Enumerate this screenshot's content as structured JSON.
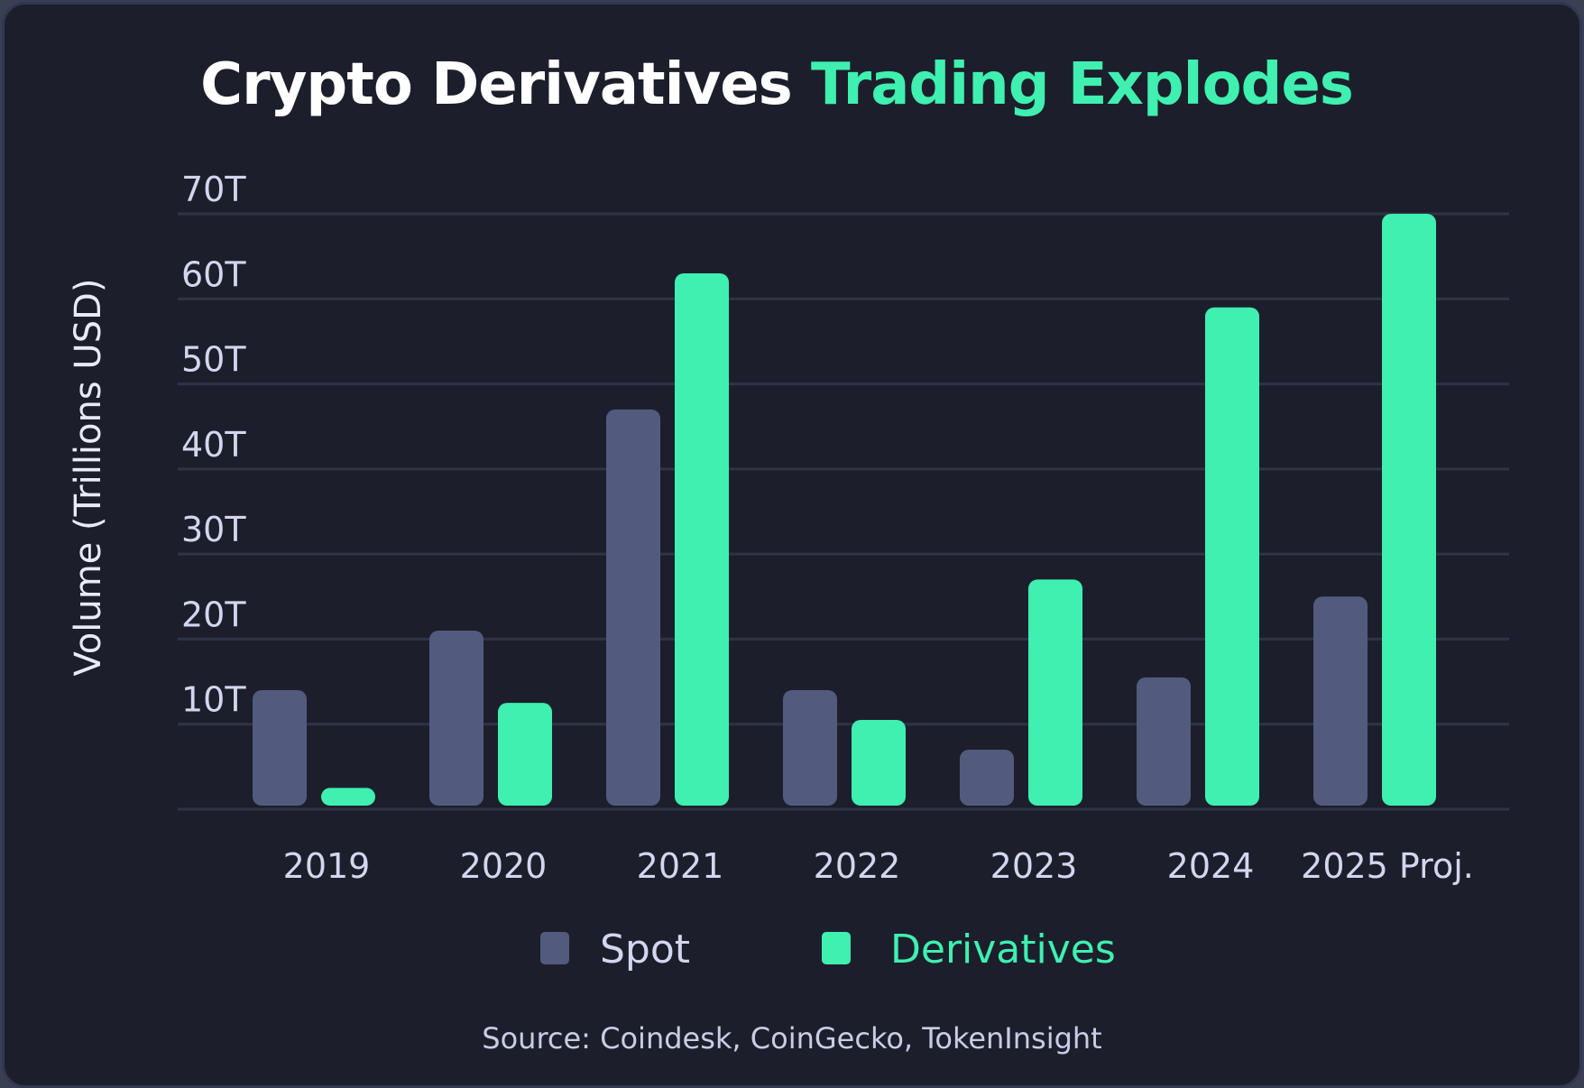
{
  "chart_data": {
    "type": "bar",
    "title": "Crypto Derivatives",
    "title_accent": "Trading Explodes",
    "ylabel": "Volume (Trillions USD)",
    "xlabel": "",
    "ylim": [
      0,
      70
    ],
    "yticks": [
      10,
      20,
      30,
      40,
      50,
      60,
      70
    ],
    "ytick_labels": [
      "10T",
      "20T",
      "30T",
      "40T",
      "50T",
      "60T",
      "70T"
    ],
    "categories": [
      "2019",
      "2020",
      "2021",
      "2022",
      "2023",
      "2024",
      "2025 Proj."
    ],
    "series": [
      {
        "name": "Spot",
        "color": "#525a7e",
        "values": [
          14,
          21,
          47,
          14,
          7,
          15.5,
          25
        ]
      },
      {
        "name": "Derivatives",
        "color": "#3ff0b0",
        "values": [
          2.5,
          12.5,
          63,
          10.5,
          27,
          59,
          70
        ]
      }
    ],
    "legend": [
      "Spot",
      "Derivatives"
    ],
    "grid": true,
    "source": "Source: Coindesk, CoinGecko, TokenInsight"
  }
}
